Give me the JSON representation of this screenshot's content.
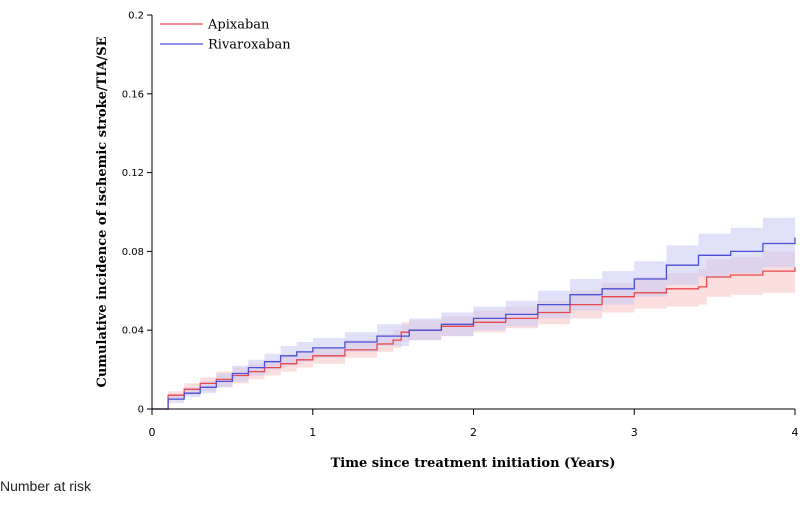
{
  "chart_data": {
    "type": "line",
    "title": "",
    "xlabel": "Time since treatment initiation (Years)",
    "ylabel": "Cumulative incidence of ischemic stroke/TIA/SE",
    "xlim": [
      0,
      4
    ],
    "ylim": [
      0,
      0.2
    ],
    "x_ticks": [
      "0",
      "1",
      "2",
      "3",
      "4"
    ],
    "y_ticks": [
      "0",
      "0.04",
      "0.08",
      "0.12",
      "0.16",
      "0.2"
    ],
    "legend_position": "top-left",
    "grid": false,
    "series": [
      {
        "name": "Apixaban",
        "color": "#e8474b",
        "band_color": "#f7c4c4",
        "x": [
          0,
          0.1,
          0.2,
          0.3,
          0.4,
          0.5,
          0.6,
          0.7,
          0.8,
          0.9,
          1.0,
          1.2,
          1.4,
          1.5,
          1.55,
          1.6,
          1.8,
          2.0,
          2.2,
          2.4,
          2.6,
          2.8,
          3.0,
          3.2,
          3.4,
          3.45,
          3.6,
          3.8,
          4.0
        ],
        "y": [
          0,
          0.007,
          0.01,
          0.013,
          0.015,
          0.017,
          0.019,
          0.021,
          0.023,
          0.025,
          0.027,
          0.03,
          0.033,
          0.035,
          0.039,
          0.04,
          0.042,
          0.044,
          0.046,
          0.049,
          0.053,
          0.057,
          0.059,
          0.061,
          0.062,
          0.067,
          0.068,
          0.07,
          0.072
        ],
        "lower": [
          0,
          0.005,
          0.007,
          0.009,
          0.011,
          0.013,
          0.015,
          0.017,
          0.019,
          0.021,
          0.023,
          0.026,
          0.029,
          0.031,
          0.034,
          0.035,
          0.037,
          0.039,
          0.041,
          0.043,
          0.046,
          0.049,
          0.051,
          0.052,
          0.053,
          0.057,
          0.058,
          0.059,
          0.061
        ],
        "upper": [
          0,
          0.009,
          0.013,
          0.016,
          0.019,
          0.021,
          0.023,
          0.025,
          0.027,
          0.029,
          0.031,
          0.035,
          0.038,
          0.04,
          0.044,
          0.045,
          0.047,
          0.05,
          0.052,
          0.055,
          0.06,
          0.064,
          0.067,
          0.069,
          0.071,
          0.076,
          0.077,
          0.08,
          0.083
        ]
      },
      {
        "name": "Rivaroxaban",
        "color": "#4b4fd6",
        "band_color": "#c9c9f4",
        "x": [
          0,
          0.1,
          0.2,
          0.3,
          0.4,
          0.5,
          0.6,
          0.7,
          0.8,
          0.9,
          1.0,
          1.2,
          1.4,
          1.6,
          1.8,
          2.0,
          2.2,
          2.4,
          2.6,
          2.8,
          3.0,
          3.2,
          3.4,
          3.6,
          3.8,
          4.0
        ],
        "y": [
          0,
          0.005,
          0.008,
          0.011,
          0.014,
          0.018,
          0.021,
          0.024,
          0.027,
          0.029,
          0.031,
          0.034,
          0.037,
          0.04,
          0.043,
          0.046,
          0.048,
          0.053,
          0.058,
          0.061,
          0.066,
          0.073,
          0.078,
          0.08,
          0.084,
          0.087
        ],
        "lower": [
          0,
          0.003,
          0.006,
          0.008,
          0.011,
          0.014,
          0.017,
          0.02,
          0.022,
          0.024,
          0.026,
          0.029,
          0.032,
          0.035,
          0.037,
          0.04,
          0.042,
          0.046,
          0.05,
          0.053,
          0.057,
          0.063,
          0.067,
          0.069,
          0.072,
          0.075
        ],
        "upper": [
          0,
          0.007,
          0.011,
          0.014,
          0.018,
          0.022,
          0.025,
          0.028,
          0.032,
          0.034,
          0.036,
          0.039,
          0.043,
          0.046,
          0.049,
          0.052,
          0.055,
          0.06,
          0.066,
          0.07,
          0.075,
          0.083,
          0.089,
          0.092,
          0.097,
          0.101
        ]
      }
    ]
  },
  "footer": {
    "number_at_risk": "Number at risk"
  }
}
